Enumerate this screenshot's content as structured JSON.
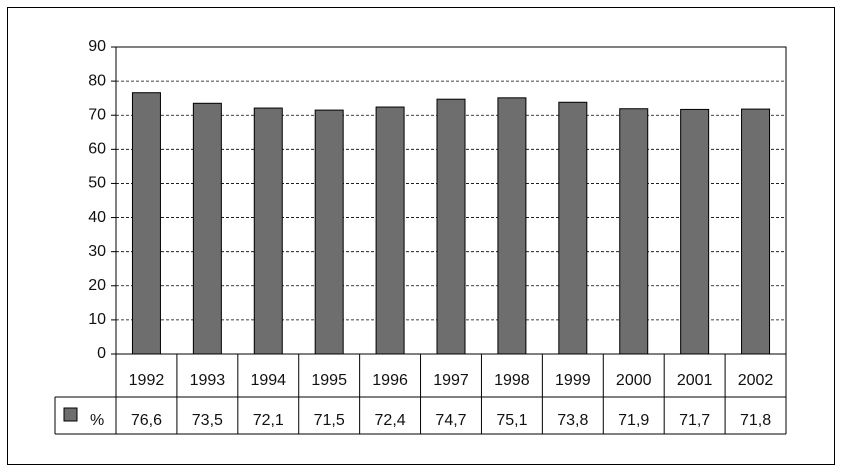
{
  "chart_data": {
    "type": "bar",
    "categories": [
      "1992",
      "1993",
      "1994",
      "1995",
      "1996",
      "1997",
      "1998",
      "1999",
      "2000",
      "2001",
      "2002"
    ],
    "series": [
      {
        "name": "%",
        "color": "#6e6e6e",
        "values": [
          76.6,
          73.5,
          72.1,
          71.5,
          72.4,
          74.7,
          75.1,
          73.8,
          71.9,
          71.7,
          71.8
        ],
        "value_labels": [
          "76,6",
          "73,5",
          "72,1",
          "71,5",
          "72,4",
          "74,7",
          "75,1",
          "73,8",
          "71,9",
          "71,7",
          "71,8"
        ]
      }
    ],
    "ylim": [
      0,
      90
    ],
    "yticks": [
      0,
      10,
      20,
      30,
      40,
      50,
      60,
      70,
      80,
      90
    ],
    "grid": true
  }
}
